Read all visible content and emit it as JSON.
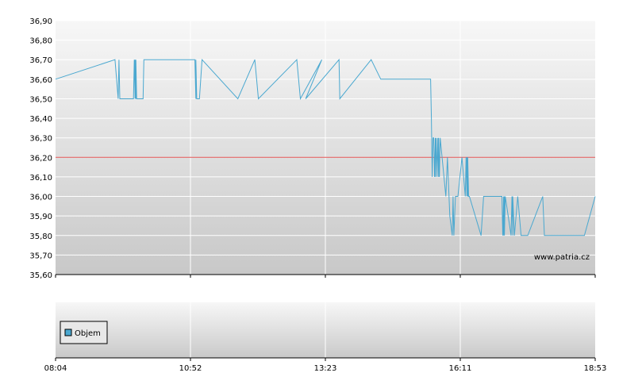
{
  "chart_data": [
    {
      "type": "line",
      "title": "",
      "xlabel": "",
      "ylabel": "",
      "ylim": [
        35.6,
        36.9
      ],
      "y_ticks": [
        "35,60",
        "35,70",
        "35,80",
        "35,90",
        "36,00",
        "36,10",
        "36,20",
        "36,30",
        "36,40",
        "36,50",
        "36,60",
        "36,70",
        "36,80",
        "36,90"
      ],
      "x_tick_labels": [
        "08:04",
        "10:52",
        "13:23",
        "16:11",
        "18:53"
      ],
      "reference_line": {
        "value": 36.2,
        "color": "#e05050"
      },
      "watermark": "www.patria.cz",
      "grid": true,
      "colors": {
        "line": "#4aa8d0",
        "reference": "#e05050"
      },
      "series": [
        {
          "x": [
            "08:04",
            "09:18",
            "09:22",
            "09:23",
            "09:24",
            "09:25",
            "09:31",
            "09:41",
            "09:42",
            "09:43",
            "09:43",
            "09:44",
            "09:44",
            "09:45",
            "09:53",
            "09:54",
            "10:57",
            "10:58",
            "10:58",
            "10:59",
            "11:00",
            "11:02",
            "11:05",
            "11:45",
            "12:04",
            "12:08",
            "12:51",
            "12:55",
            "13:19",
            "13:01",
            "13:40",
            "13:41",
            "14:20",
            "14:32",
            "15:34",
            "15:35",
            "15:36",
            "15:37",
            "15:38",
            "15:39",
            "15:40",
            "15:40",
            "15:41",
            "15:42",
            "15:43",
            "15:44",
            "15:44",
            "15:45",
            "15:46",
            "15:53",
            "15:55",
            "15:58",
            "16:01",
            "16:02",
            "16:03",
            "16:04",
            "16:05",
            "16:06",
            "16:08",
            "16:13",
            "16:17",
            "16:18",
            "16:19",
            "16:19",
            "16:20",
            "16:20",
            "16:21",
            "16:22",
            "16:36",
            "16:39",
            "17:01",
            "17:02",
            "17:03",
            "17:03",
            "17:04",
            "17:04",
            "17:05",
            "17:12",
            "17:13",
            "17:14",
            "17:14",
            "17:16",
            "17:20",
            "17:24",
            "17:26",
            "17:32",
            "17:50",
            "17:52",
            "18:40",
            "18:53"
          ],
          "values": [
            36.6,
            36.7,
            36.5,
            36.7,
            36.5,
            36.5,
            36.5,
            36.5,
            36.7,
            36.5,
            36.7,
            36.5,
            36.7,
            36.5,
            36.5,
            36.7,
            36.7,
            36.5,
            36.7,
            36.5,
            36.5,
            36.5,
            36.7,
            36.5,
            36.7,
            36.5,
            36.7,
            36.5,
            36.7,
            36.5,
            36.7,
            36.5,
            36.7,
            36.6,
            36.6,
            36.4,
            36.1,
            36.3,
            36.3,
            36.1,
            36.3,
            36.1,
            36.3,
            36.1,
            36.3,
            36.1,
            36.3,
            36.1,
            36.3,
            36.0,
            36.2,
            35.9,
            35.8,
            36.0,
            35.8,
            35.9,
            36.0,
            36.0,
            36.0,
            36.2,
            36.0,
            36.2,
            36.0,
            36.2,
            36.0,
            36.2,
            36.0,
            36.0,
            35.8,
            36.0,
            36.0,
            35.8,
            36.0,
            35.8,
            36.0,
            35.8,
            36.0,
            35.8,
            36.0,
            35.8,
            36.0,
            35.8,
            36.0,
            35.8,
            35.8,
            35.8,
            36.0,
            35.8,
            35.8,
            36.0
          ]
        }
      ]
    },
    {
      "type": "bar",
      "title": "",
      "xlabel": "",
      "ylabel": "",
      "x_tick_labels": [
        "08:04",
        "10:52",
        "13:23",
        "16:11",
        "18:53"
      ],
      "legend": {
        "placement": "top-left",
        "entries": [
          "Objem"
        ]
      },
      "colors": {
        "legend_swatch": "#4aa8d0"
      },
      "series": [
        {
          "name": "Objem",
          "values": []
        }
      ]
    }
  ]
}
